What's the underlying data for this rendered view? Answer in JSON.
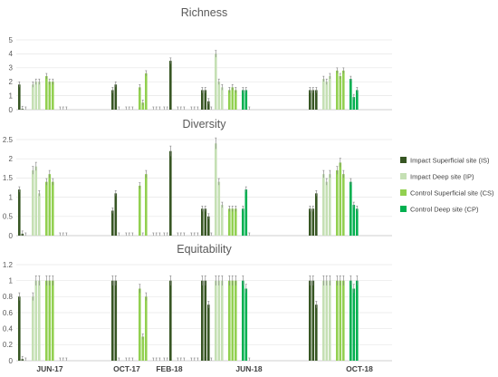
{
  "chart_data": {
    "type": "bar",
    "groups": [
      "JUN-17",
      "OCT-17",
      "FEB-18",
      "JUN-18",
      "OCT-18"
    ],
    "series": [
      {
        "name": "Impact Superficial site (IS)",
        "color": "#375623"
      },
      {
        "name": "Impact Deep site (IP)",
        "color": "#c5e0b4"
      },
      {
        "name": "Control Superficial site (CS)",
        "color": "#92d050"
      },
      {
        "name": "Control Deep site (CP)",
        "color": "#00b050"
      }
    ],
    "panels": [
      {
        "title": "Richness",
        "ylim": [
          0,
          5
        ],
        "yticks": [
          "0",
          "1",
          "2",
          "3",
          "4",
          "5"
        ],
        "data": {
          "JUN-17": [
            [
              1.8,
              0.05,
              0
            ],
            [
              1.8,
              2.0,
              2.0
            ],
            [
              2.4,
              2.0,
              2.0
            ],
            [
              0,
              0,
              0
            ]
          ],
          "OCT-17": [
            [
              1.4,
              1.8,
              0
            ],
            [
              0,
              0,
              0
            ],
            [
              1.6,
              0.5,
              2.6
            ],
            [
              0,
              0,
              0
            ]
          ],
          "FEB-18": [
            [
              0,
              0,
              3.5
            ],
            [
              0,
              0,
              0
            ],
            [
              0,
              0,
              0
            ],
            [
              0,
              0,
              0
            ]
          ],
          "JUN-18": [
            [
              1.4,
              1.4,
              0.6
            ],
            [
              4.0,
              2.0,
              1.6
            ],
            [
              1.4,
              1.6,
              1.4
            ],
            [
              1.4,
              1.4,
              0
            ]
          ],
          "OCT-18": [
            [
              1.4,
              1.4,
              1.4
            ],
            [
              2.2,
              2.0,
              2.4
            ],
            [
              2.8,
              2.4,
              2.8
            ],
            [
              2.2,
              0.9,
              1.4
            ]
          ]
        }
      },
      {
        "title": "Diversity",
        "ylim": [
          0,
          2.5
        ],
        "yticks": [
          "0",
          "0.5",
          "1",
          "1.5",
          "2",
          "2.5"
        ],
        "data": {
          "JUN-17": [
            [
              1.2,
              0.05,
              0
            ],
            [
              1.7,
              1.8,
              1.1
            ],
            [
              1.4,
              1.6,
              1.4
            ],
            [
              0,
              0,
              0
            ]
          ],
          "OCT-17": [
            [
              0.65,
              1.1,
              0
            ],
            [
              0,
              0,
              0
            ],
            [
              1.3,
              0,
              1.6
            ],
            [
              0,
              0,
              0
            ]
          ],
          "FEB-18": [
            [
              0,
              0,
              2.2
            ],
            [
              0,
              0,
              0
            ],
            [
              0,
              0,
              0
            ],
            [
              0,
              0,
              0
            ]
          ],
          "JUN-18": [
            [
              0.7,
              0.7,
              0.5
            ],
            [
              2.4,
              1.4,
              0.8
            ],
            [
              0.7,
              0.7,
              0.7
            ],
            [
              0.7,
              1.2,
              0
            ]
          ],
          "OCT-18": [
            [
              0.7,
              0.7,
              1.1
            ],
            [
              1.6,
              1.4,
              1.6
            ],
            [
              1.7,
              1.9,
              1.6
            ],
            [
              1.4,
              0.8,
              0.7
            ]
          ]
        }
      },
      {
        "title": "Equitability",
        "ylim": [
          0,
          1.2
        ],
        "yticks": [
          "0",
          "0.2",
          "0.4",
          "0.6",
          "0.8",
          "1",
          "1.2"
        ],
        "data": {
          "JUN-17": [
            [
              0.8,
              0.02,
              0
            ],
            [
              0.8,
              1.0,
              1.0
            ],
            [
              1.0,
              1.0,
              1.0
            ],
            [
              0,
              0,
              0
            ]
          ],
          "OCT-17": [
            [
              1.0,
              1.0,
              0
            ],
            [
              0,
              0,
              0
            ],
            [
              0.9,
              0.3,
              0.8
            ],
            [
              0,
              0,
              0
            ]
          ],
          "FEB-18": [
            [
              0,
              0,
              1.0
            ],
            [
              0,
              0,
              0
            ],
            [
              0,
              0,
              0
            ],
            [
              0,
              0,
              0
            ]
          ],
          "JUN-18": [
            [
              1.0,
              1.0,
              0.7
            ],
            [
              1.0,
              1.0,
              1.0
            ],
            [
              1.0,
              1.0,
              1.0
            ],
            [
              1.0,
              0.9,
              0
            ]
          ],
          "OCT-18": [
            [
              1.0,
              1.0,
              0.7
            ],
            [
              1.0,
              1.0,
              1.0
            ],
            [
              1.0,
              1.0,
              1.0
            ],
            [
              1.0,
              0.9,
              1.0
            ]
          ]
        }
      }
    ],
    "legend_position": "right"
  }
}
